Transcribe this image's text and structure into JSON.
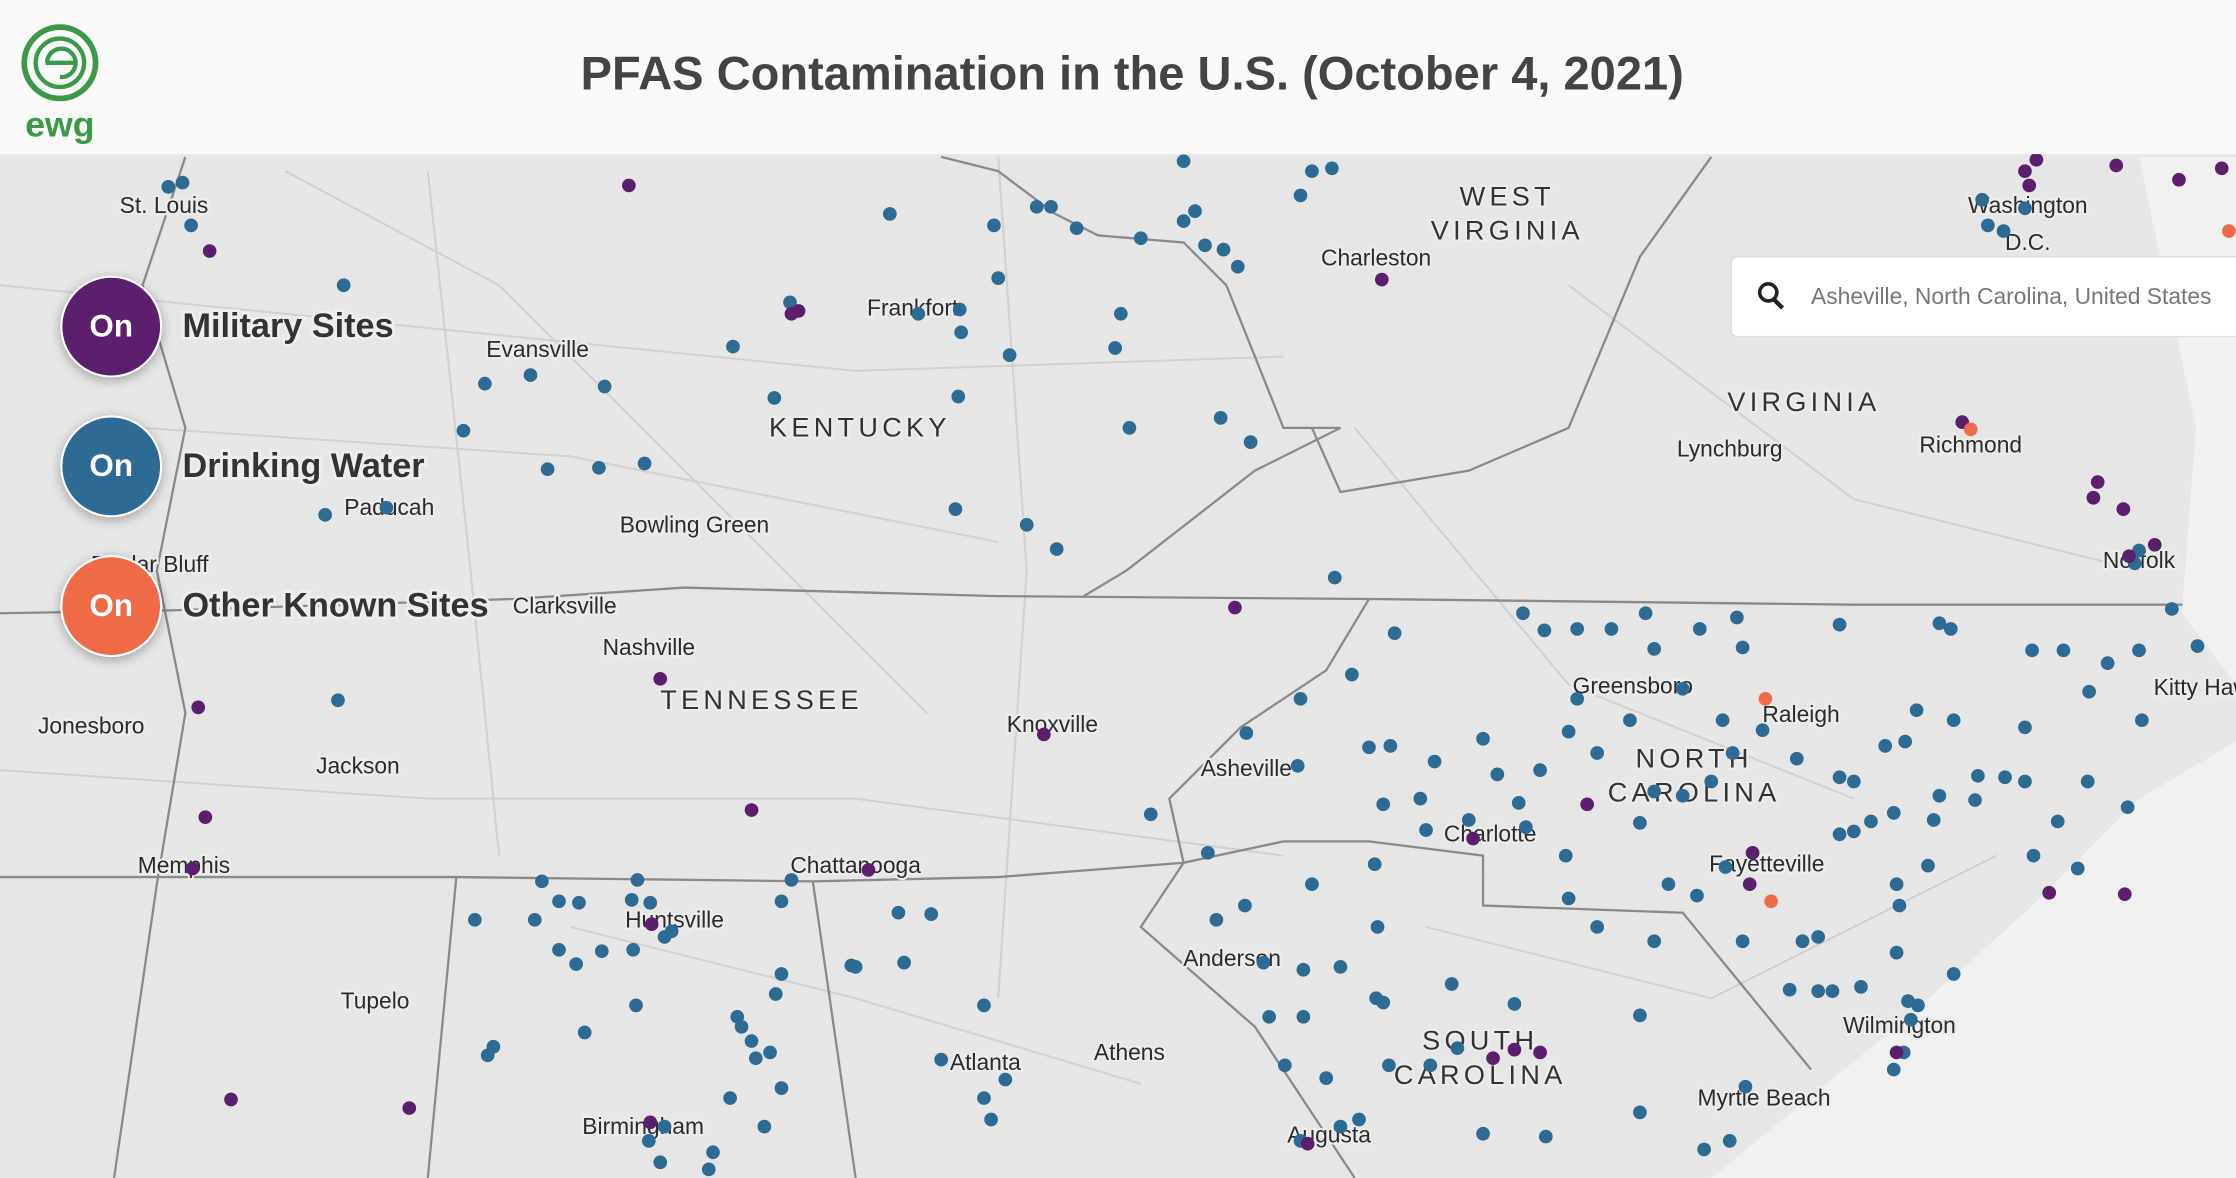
{
  "header": {
    "logo_text": "ewg",
    "title": "PFAS Contamination in the U.S. (October 4, 2021)"
  },
  "legend": {
    "toggles": [
      {
        "state": "On",
        "label": "Military Sites"
      },
      {
        "state": "On",
        "label": "Drinking Water"
      },
      {
        "state": "On",
        "label": "Other Known Sites"
      }
    ]
  },
  "search": {
    "placeholder": "Asheville, North Carolina, United States"
  },
  "map": {
    "labels": [
      {
        "lines": [
          "St. Louis"
        ]
      },
      {
        "lines": [
          "Evansville"
        ]
      },
      {
        "lines": [
          "Frankfort"
        ]
      },
      {
        "lines": [
          "Charleston"
        ]
      },
      {
        "lines": [
          "WEST",
          "VIRGINIA"
        ]
      },
      {
        "lines": [
          "Washington",
          "D.C."
        ]
      },
      {
        "lines": [
          "KENTUCKY"
        ]
      },
      {
        "lines": [
          "VIRGINIA"
        ]
      },
      {
        "lines": [
          "Lynchburg"
        ]
      },
      {
        "lines": [
          "Richmond"
        ]
      },
      {
        "lines": [
          "Paducah"
        ]
      },
      {
        "lines": [
          "Bowling Green"
        ]
      },
      {
        "lines": [
          "Norfolk"
        ]
      },
      {
        "lines": [
          "Clarksville"
        ]
      },
      {
        "lines": [
          "Nashville"
        ]
      },
      {
        "lines": [
          "TENNESSEE"
        ]
      },
      {
        "lines": [
          "Knoxville"
        ]
      },
      {
        "lines": [
          "Greensboro"
        ]
      },
      {
        "lines": [
          "Raleigh"
        ]
      },
      {
        "lines": [
          "Kitty Hawk"
        ]
      },
      {
        "lines": [
          "Jonesboro"
        ]
      },
      {
        "lines": [
          "Jackson"
        ]
      },
      {
        "lines": [
          "Asheville"
        ]
      },
      {
        "lines": [
          "NORTH",
          "CAROLINA"
        ]
      },
      {
        "lines": [
          "Charlotte"
        ]
      },
      {
        "lines": [
          "Memphis"
        ]
      },
      {
        "lines": [
          "Chattanooga"
        ]
      },
      {
        "lines": [
          "Fayetteville"
        ]
      },
      {
        "lines": [
          "Huntsville"
        ]
      },
      {
        "lines": [
          "Anderson"
        ]
      },
      {
        "lines": [
          "Tupelo"
        ]
      },
      {
        "lines": [
          "Wilmington"
        ]
      },
      {
        "lines": [
          "SOUTH",
          "CAROLINA"
        ]
      },
      {
        "lines": [
          "Athens"
        ]
      },
      {
        "lines": [
          "Atlanta"
        ]
      },
      {
        "lines": [
          "Myrtle Beach"
        ]
      },
      {
        "lines": [
          "Birmingham"
        ]
      },
      {
        "lines": [
          "Augusta"
        ]
      },
      {
        "lines": [
          "Poplar Bluff"
        ]
      }
    ]
  }
}
